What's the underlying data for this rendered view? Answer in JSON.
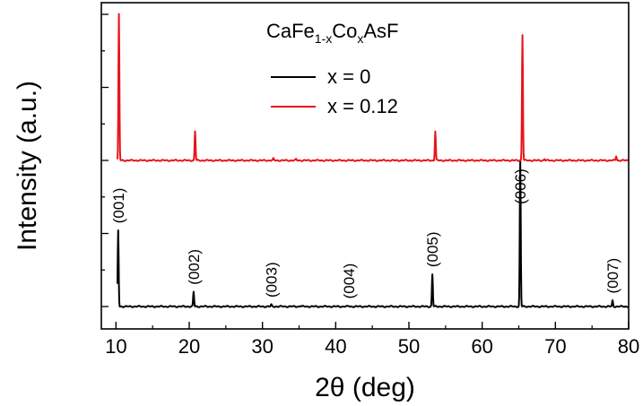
{
  "chart_data": {
    "type": "line",
    "xlabel": "2θ (deg)",
    "ylabel": "Intensity (a.u.)",
    "xlim": [
      8,
      80
    ],
    "ylim": [
      0,
      100
    ],
    "x_ticks": [
      10,
      20,
      30,
      40,
      50,
      60,
      70,
      80
    ],
    "y_ticks_show_labels": false,
    "legend": {
      "title_base": "CaFe",
      "title_sub1": "1-x",
      "title_mid": "Co",
      "title_sub2": "x",
      "title_end": "AsF",
      "placement": "top-center"
    },
    "series": [
      {
        "name": "x = 0",
        "color": "#000000",
        "baseline": 0,
        "peaks": [
          {
            "x": 10.3,
            "height": 26
          },
          {
            "x": 20.6,
            "height": 5
          },
          {
            "x": 31.2,
            "height": 0.6
          },
          {
            "x": 35.2,
            "height": 0.3
          },
          {
            "x": 41.8,
            "height": 0.2
          },
          {
            "x": 53.2,
            "height": 11
          },
          {
            "x": 65.2,
            "height": 50
          },
          {
            "x": 77.8,
            "height": 2
          }
        ],
        "peak_labels": [
          {
            "x": 10.3,
            "label": "(001)"
          },
          {
            "x": 20.6,
            "label": "(002)"
          },
          {
            "x": 31.2,
            "label": "(003)"
          },
          {
            "x": 41.8,
            "label": "(004)"
          },
          {
            "x": 53.2,
            "label": "(005)"
          },
          {
            "x": 65.2,
            "label": "(006)"
          },
          {
            "x": 77.8,
            "label": "(007)"
          }
        ]
      },
      {
        "name": "x = 0.12",
        "color": "#e8141c",
        "baseline": 50,
        "peaks": [
          {
            "x": 10.4,
            "height": 50
          },
          {
            "x": 20.8,
            "height": 10
          },
          {
            "x": 31.5,
            "height": 0.6
          },
          {
            "x": 34.6,
            "height": 0.4
          },
          {
            "x": 53.6,
            "height": 10
          },
          {
            "x": 65.5,
            "height": 43
          },
          {
            "x": 68.5,
            "height": 0.5
          },
          {
            "x": 78.3,
            "height": 1.5
          }
        ]
      }
    ]
  }
}
